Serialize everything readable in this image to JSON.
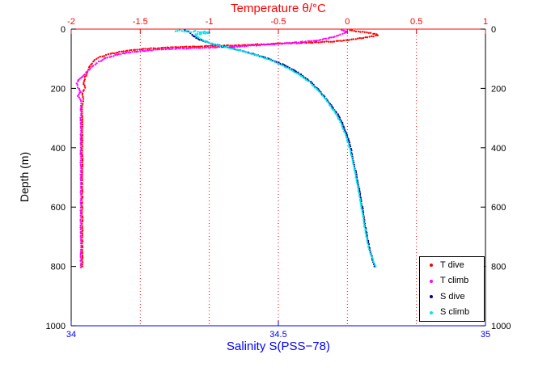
{
  "chart_data": {
    "type": "scatter",
    "title": "Temperature θ/°C",
    "xlabel_top": "Temperature θ/°C",
    "xlabel_bottom": "Salinity S(PSS−78)",
    "ylabel": "Depth (m)",
    "x_top": {
      "label": "Temperature θ/°C",
      "range": [
        -2,
        1
      ],
      "ticks": [
        -2,
        -1.5,
        -1,
        -0.5,
        0,
        0.5,
        1
      ],
      "color": "#ff0000"
    },
    "x_bottom": {
      "label": "Salinity S(PSS−78)",
      "range": [
        34,
        35
      ],
      "ticks": [
        34,
        34.5,
        35
      ],
      "color": "#0000ff"
    },
    "y": {
      "label": "Depth (m)",
      "range": [
        0,
        1000
      ],
      "ticks": [
        0,
        200,
        400,
        600,
        800,
        1000
      ],
      "reversed": true,
      "color": "#000000"
    },
    "grid": {
      "vertical": true,
      "horizontal": false,
      "style": "dotted",
      "color": "#ff0000"
    },
    "legend_position": "bottom-right",
    "series": [
      {
        "name": "T dive",
        "color": "#ff0000",
        "axis": "top",
        "marker": "dot",
        "points": [
          [
            0.02,
            4
          ],
          [
            0.08,
            8
          ],
          [
            0.14,
            12
          ],
          [
            0.2,
            16
          ],
          [
            0.22,
            21
          ],
          [
            0.16,
            26
          ],
          [
            0.09,
            31
          ],
          [
            0.03,
            36
          ],
          [
            -0.08,
            41
          ],
          [
            -0.25,
            45
          ],
          [
            -0.48,
            49
          ],
          [
            -0.72,
            53
          ],
          [
            -0.98,
            57
          ],
          [
            -1.22,
            61
          ],
          [
            -1.42,
            65
          ],
          [
            -1.55,
            70
          ],
          [
            -1.65,
            77
          ],
          [
            -1.73,
            85
          ],
          [
            -1.79,
            94
          ],
          [
            -1.83,
            104
          ],
          [
            -1.85,
            116
          ],
          [
            -1.87,
            130
          ],
          [
            -1.88,
            145
          ],
          [
            -1.9,
            162
          ],
          [
            -1.91,
            180
          ],
          [
            -1.9,
            198
          ],
          [
            -1.92,
            216
          ],
          [
            -1.91,
            236
          ],
          [
            -1.92,
            258
          ],
          [
            -1.92,
            285
          ],
          [
            -1.92,
            315
          ],
          [
            -1.92,
            350
          ],
          [
            -1.92,
            390
          ],
          [
            -1.92,
            430
          ],
          [
            -1.92,
            470
          ],
          [
            -1.92,
            510
          ],
          [
            -1.92,
            550
          ],
          [
            -1.92,
            590
          ],
          [
            -1.92,
            630
          ],
          [
            -1.92,
            670
          ],
          [
            -1.92,
            710
          ],
          [
            -1.92,
            750
          ],
          [
            -1.92,
            780
          ],
          [
            -1.92,
            800
          ]
        ]
      },
      {
        "name": "T climb",
        "color": "#ff00ff",
        "axis": "top",
        "marker": "dot",
        "points": [
          [
            -0.04,
            4
          ],
          [
            0.0,
            9
          ],
          [
            -0.02,
            14
          ],
          [
            -0.05,
            19
          ],
          [
            -0.09,
            25
          ],
          [
            -0.14,
            31
          ],
          [
            -0.22,
            38
          ],
          [
            -0.34,
            44
          ],
          [
            -0.5,
            50
          ],
          [
            -0.66,
            55
          ],
          [
            -0.8,
            59
          ],
          [
            -0.98,
            62
          ],
          [
            -1.18,
            65
          ],
          [
            -1.36,
            69
          ],
          [
            -1.5,
            74
          ],
          [
            -1.6,
            80
          ],
          [
            -1.68,
            88
          ],
          [
            -1.75,
            98
          ],
          [
            -1.8,
            110
          ],
          [
            -1.84,
            123
          ],
          [
            -1.87,
            137
          ],
          [
            -1.9,
            152
          ],
          [
            -1.94,
            167
          ],
          [
            -1.96,
            182
          ],
          [
            -1.95,
            197
          ],
          [
            -1.93,
            211
          ],
          [
            -1.95,
            226
          ],
          [
            -1.93,
            243
          ],
          [
            -1.93,
            265
          ],
          [
            -1.93,
            292
          ],
          [
            -1.93,
            322
          ],
          [
            -1.93,
            355
          ],
          [
            -1.93,
            392
          ],
          [
            -1.93,
            430
          ],
          [
            -1.93,
            470
          ],
          [
            -1.93,
            510
          ],
          [
            -1.93,
            550
          ],
          [
            -1.93,
            590
          ],
          [
            -1.93,
            630
          ],
          [
            -1.93,
            670
          ],
          [
            -1.93,
            710
          ],
          [
            -1.93,
            750
          ],
          [
            -1.93,
            782
          ],
          [
            -1.93,
            803
          ]
        ]
      },
      {
        "name": "S dive",
        "color": "#00008b",
        "axis": "bottom",
        "marker": "dot",
        "points": [
          [
            34.275,
            4
          ],
          [
            34.282,
            9
          ],
          [
            34.288,
            14
          ],
          [
            34.292,
            20
          ],
          [
            34.298,
            26
          ],
          [
            34.306,
            33
          ],
          [
            34.318,
            40
          ],
          [
            34.338,
            48
          ],
          [
            34.362,
            57
          ],
          [
            34.392,
            66
          ],
          [
            34.422,
            77
          ],
          [
            34.452,
            89
          ],
          [
            34.482,
            103
          ],
          [
            34.51,
            119
          ],
          [
            34.536,
            137
          ],
          [
            34.558,
            157
          ],
          [
            34.578,
            179
          ],
          [
            34.596,
            203
          ],
          [
            34.612,
            229
          ],
          [
            34.628,
            257
          ],
          [
            34.643,
            288
          ],
          [
            34.656,
            322
          ],
          [
            34.666,
            358
          ],
          [
            34.674,
            396
          ],
          [
            34.68,
            436
          ],
          [
            34.686,
            477
          ],
          [
            34.692,
            519
          ],
          [
            34.698,
            562
          ],
          [
            34.703,
            606
          ],
          [
            34.708,
            650
          ],
          [
            34.714,
            694
          ],
          [
            34.72,
            738
          ],
          [
            34.726,
            772
          ],
          [
            34.732,
            800
          ]
        ]
      },
      {
        "name": "S climb",
        "color": "#00e5ee",
        "axis": "bottom",
        "marker": "dot",
        "points": [
          [
            34.252,
            7
          ],
          [
            34.262,
            5
          ],
          [
            34.272,
            9
          ],
          [
            34.28,
            6
          ],
          [
            34.29,
            10
          ],
          [
            34.3,
            7
          ],
          [
            34.31,
            11
          ],
          [
            34.322,
            9
          ],
          [
            34.334,
            13
          ],
          [
            34.3,
            17
          ],
          [
            34.302,
            23
          ],
          [
            34.308,
            30
          ],
          [
            34.318,
            38
          ],
          [
            34.334,
            46
          ],
          [
            34.356,
            55
          ],
          [
            34.384,
            64
          ],
          [
            34.414,
            75
          ],
          [
            34.444,
            87
          ],
          [
            34.474,
            101
          ],
          [
            34.502,
            117
          ],
          [
            34.528,
            135
          ],
          [
            34.552,
            155
          ],
          [
            34.574,
            177
          ],
          [
            34.592,
            201
          ],
          [
            34.608,
            227
          ],
          [
            34.624,
            255
          ],
          [
            34.639,
            286
          ],
          [
            34.652,
            320
          ],
          [
            34.662,
            356
          ],
          [
            34.671,
            394
          ],
          [
            34.678,
            434
          ],
          [
            34.684,
            475
          ],
          [
            34.69,
            517
          ],
          [
            34.696,
            560
          ],
          [
            34.701,
            604
          ],
          [
            34.706,
            648
          ],
          [
            34.712,
            692
          ],
          [
            34.718,
            736
          ],
          [
            34.726,
            770
          ],
          [
            34.735,
            800
          ]
        ]
      }
    ]
  }
}
